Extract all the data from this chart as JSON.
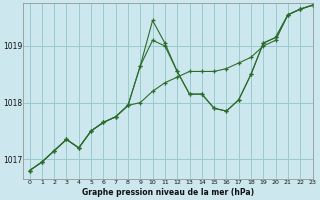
{
  "title": "Graphe pression niveau de la mer (hPa)",
  "background_color": "#cce8ee",
  "grid_color": "#99cccc",
  "line_color": "#2d6b2d",
  "marker_color": "#2d6b2d",
  "xlim": [
    -0.5,
    23
  ],
  "ylim": [
    1016.65,
    1019.75
  ],
  "yticks": [
    1017,
    1018,
    1019
  ],
  "xticks": [
    0,
    1,
    2,
    3,
    4,
    5,
    6,
    7,
    8,
    9,
    10,
    11,
    12,
    13,
    14,
    15,
    16,
    17,
    18,
    19,
    20,
    21,
    22,
    23
  ],
  "series": [
    [
      1016.8,
      1016.95,
      1017.15,
      1017.35,
      1017.2,
      1017.5,
      1017.65,
      1017.75,
      1017.95,
      1018.65,
      1019.45,
      1019.05,
      1018.55,
      1018.15,
      1018.15,
      1017.9,
      1017.85,
      1018.05,
      1018.5,
      1019.05,
      1019.15,
      1019.55,
      1019.65,
      1019.72
    ],
    [
      1016.8,
      1016.95,
      1017.15,
      1017.35,
      1017.2,
      1017.5,
      1017.65,
      1017.75,
      1017.95,
      1018.65,
      1019.1,
      1019.0,
      1018.55,
      1018.15,
      1018.15,
      1017.9,
      1017.85,
      1018.05,
      1018.5,
      1019.05,
      1019.15,
      1019.55,
      1019.65,
      1019.72
    ],
    [
      1016.8,
      1016.95,
      1017.15,
      1017.35,
      1017.2,
      1017.5,
      1017.65,
      1017.75,
      1017.95,
      1018.0,
      1018.2,
      1018.35,
      1018.45,
      1018.55,
      1018.55,
      1018.55,
      1018.6,
      1018.7,
      1018.8,
      1019.0,
      1019.1,
      1019.55,
      1019.65,
      1019.72
    ]
  ]
}
